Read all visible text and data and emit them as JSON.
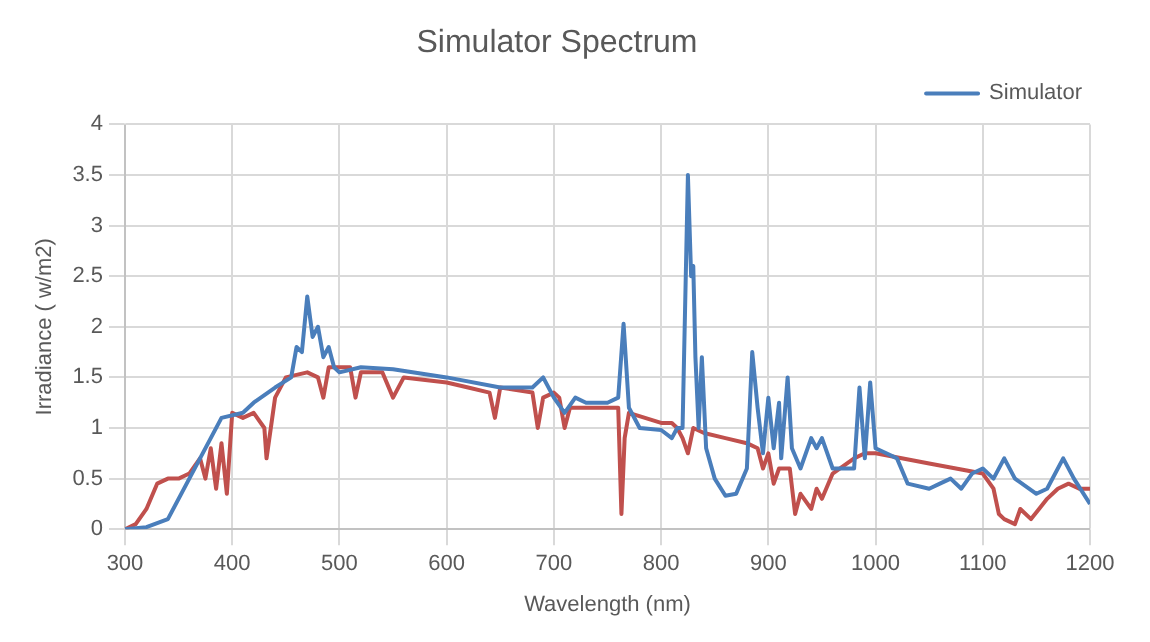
{
  "chart_data": {
    "type": "line",
    "title": "Simulator Spectrum",
    "xlabel": "Wavelength (nm)",
    "ylabel": "Irradiance ( w/m2)",
    "xlim": [
      300,
      1200
    ],
    "xticks": [
      300,
      400,
      500,
      600,
      700,
      800,
      900,
      1000,
      1100,
      1200
    ],
    "ylim": [
      0,
      4
    ],
    "yticks": [
      0,
      0.5,
      1,
      1.5,
      2,
      2.5,
      3,
      3.5,
      4
    ],
    "grid": true,
    "legend": "top right",
    "marker": "none",
    "line_style": "solid",
    "series": [
      {
        "name": "Simulator",
        "color": "#4a7ebb",
        "x": [
          300,
          320,
          340,
          360,
          380,
          390,
          410,
          420,
          440,
          455,
          460,
          465,
          470,
          475,
          480,
          485,
          490,
          495,
          500,
          520,
          550,
          600,
          650,
          680,
          690,
          700,
          710,
          720,
          730,
          750,
          760,
          765,
          770,
          780,
          800,
          810,
          815,
          820,
          825,
          828,
          830,
          832,
          835,
          838,
          842,
          850,
          860,
          870,
          880,
          885,
          890,
          895,
          900,
          905,
          910,
          912,
          918,
          922,
          930,
          940,
          945,
          950,
          960,
          980,
          985,
          990,
          995,
          1000,
          1010,
          1020,
          1030,
          1050,
          1060,
          1070,
          1080,
          1090,
          1100,
          1110,
          1120,
          1130,
          1150,
          1160,
          1175,
          1185,
          1200
        ],
        "values": [
          0,
          0.02,
          0.1,
          0.5,
          0.9,
          1.1,
          1.15,
          1.25,
          1.4,
          1.5,
          1.8,
          1.75,
          2.3,
          1.9,
          2,
          1.7,
          1.8,
          1.6,
          1.55,
          1.6,
          1.58,
          1.5,
          1.4,
          1.4,
          1.5,
          1.3,
          1.15,
          1.3,
          1.25,
          1.25,
          1.3,
          2.03,
          1.2,
          1,
          0.98,
          0.9,
          1,
          1,
          3.5,
          2.5,
          2.6,
          1.7,
          1,
          1.7,
          0.8,
          0.5,
          0.33,
          0.35,
          0.6,
          1.75,
          1.2,
          0.75,
          1.3,
          0.8,
          1.25,
          0.7,
          1.5,
          0.8,
          0.6,
          0.9,
          0.8,
          0.9,
          0.6,
          0.6,
          1.4,
          0.7,
          1.45,
          0.8,
          0.75,
          0.7,
          0.45,
          0.4,
          0.45,
          0.5,
          0.4,
          0.55,
          0.6,
          0.5,
          0.7,
          0.5,
          0.35,
          0.4,
          0.7,
          0.5,
          0.25
        ]
      },
      {
        "color": "#c0504d",
        "x": [
          300,
          310,
          320,
          330,
          340,
          350,
          360,
          370,
          375,
          380,
          385,
          390,
          395,
          400,
          410,
          420,
          430,
          432,
          440,
          450,
          470,
          480,
          485,
          490,
          500,
          510,
          515,
          520,
          540,
          550,
          560,
          600,
          620,
          640,
          645,
          650,
          680,
          685,
          690,
          700,
          705,
          710,
          715,
          730,
          750,
          760,
          763,
          766,
          770,
          800,
          810,
          815,
          820,
          825,
          830,
          840,
          860,
          880,
          890,
          895,
          900,
          905,
          910,
          920,
          925,
          930,
          940,
          945,
          950,
          960,
          980,
          990,
          1000,
          1050,
          1100,
          1110,
          1115,
          1120,
          1130,
          1135,
          1145,
          1160,
          1170,
          1180,
          1190,
          1200
        ],
        "values": [
          0,
          0.05,
          0.2,
          0.45,
          0.5,
          0.5,
          0.55,
          0.7,
          0.5,
          0.8,
          0.4,
          0.85,
          0.35,
          1.15,
          1.1,
          1.15,
          1,
          0.7,
          1.3,
          1.5,
          1.55,
          1.5,
          1.3,
          1.6,
          1.6,
          1.6,
          1.3,
          1.55,
          1.55,
          1.3,
          1.5,
          1.45,
          1.4,
          1.35,
          1.1,
          1.4,
          1.35,
          1,
          1.3,
          1.35,
          1.3,
          1,
          1.2,
          1.2,
          1.2,
          1.2,
          0.15,
          0.9,
          1.15,
          1.05,
          1.05,
          1,
          0.9,
          0.75,
          1,
          0.95,
          0.9,
          0.85,
          0.8,
          0.6,
          0.75,
          0.45,
          0.6,
          0.6,
          0.15,
          0.35,
          0.2,
          0.4,
          0.3,
          0.55,
          0.7,
          0.75,
          0.75,
          0.65,
          0.55,
          0.4,
          0.15,
          0.1,
          0.05,
          0.2,
          0.1,
          0.3,
          0.4,
          0.45,
          0.4,
          0.4
        ]
      }
    ]
  }
}
